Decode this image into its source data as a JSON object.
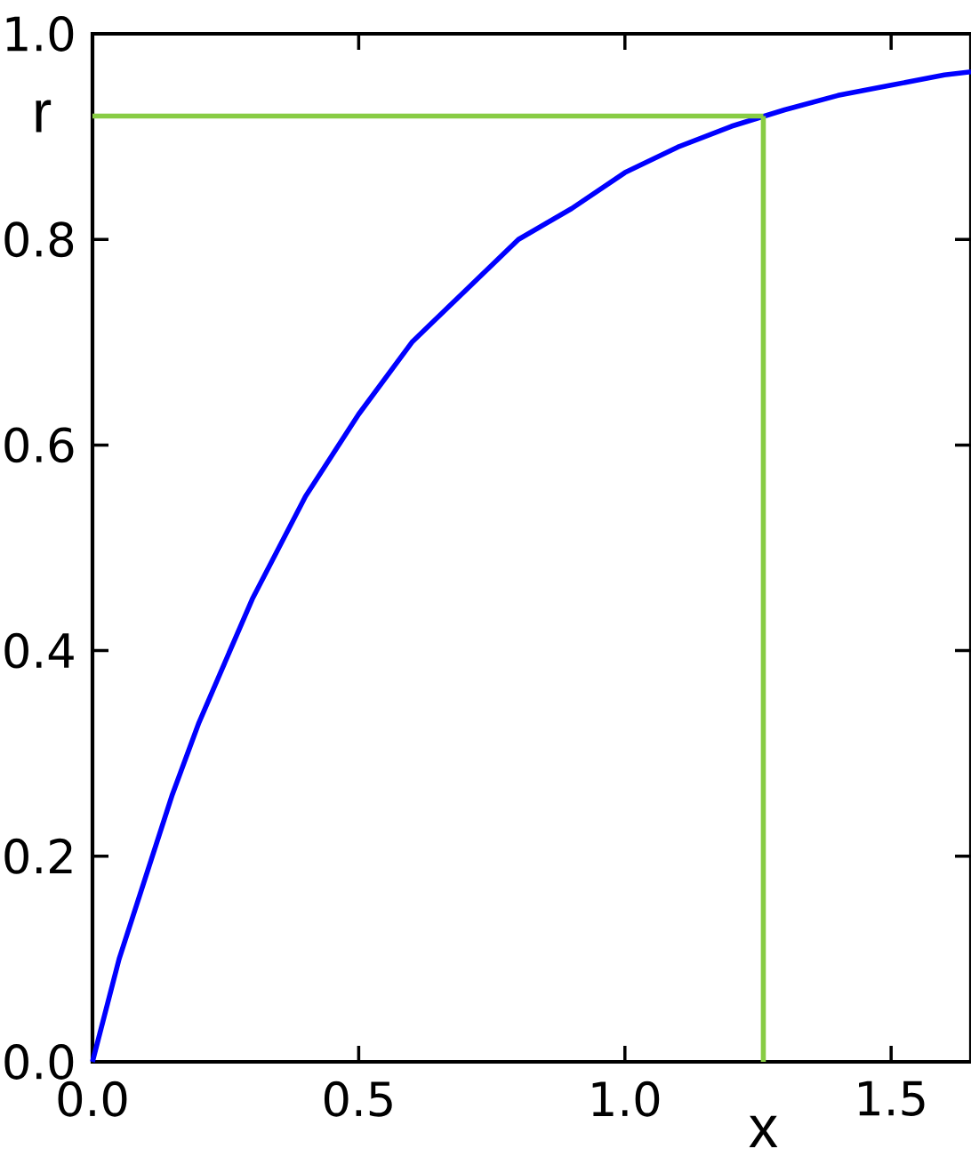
{
  "chart_data": {
    "type": "line",
    "x": [
      0,
      0.05,
      0.1,
      0.15,
      0.2,
      0.25,
      0.3,
      0.35,
      0.4,
      0.45,
      0.5,
      0.6,
      0.7,
      0.8,
      0.9,
      1.0,
      1.1,
      1.2,
      1.3,
      1.4,
      1.5,
      1.6,
      1.65
    ],
    "series": [
      {
        "color": "#0000ff",
        "values": [
          0,
          0.1,
          0.18,
          0.26,
          0.33,
          0.39,
          0.45,
          0.5,
          0.55,
          0.59,
          0.63,
          0.7,
          0.75,
          0.8,
          0.83,
          0.865,
          0.89,
          0.91,
          0.926,
          0.94,
          0.95,
          0.96,
          0.963
        ]
      }
    ],
    "xlim": [
      0,
      1.65
    ],
    "ylim": [
      0,
      1.0
    ],
    "xticks": [
      {
        "value": 0,
        "label": "0.0"
      },
      0.5,
      {
        "value": 1,
        "label": "1.0"
      },
      1.5
    ],
    "yticks": [
      {
        "value": 0,
        "label": "0.0"
      },
      0.2,
      0.4,
      0.6,
      0.8,
      {
        "value": 1,
        "label": "1.0"
      }
    ],
    "ref_lines": [
      {
        "axis": "y",
        "value": 0.92,
        "label": "r",
        "color": "#88cc44"
      },
      {
        "axis": "x",
        "value": 1.26,
        "label": "x",
        "color": "#88cc44"
      }
    ],
    "marker": "none",
    "line_style": "solid"
  }
}
